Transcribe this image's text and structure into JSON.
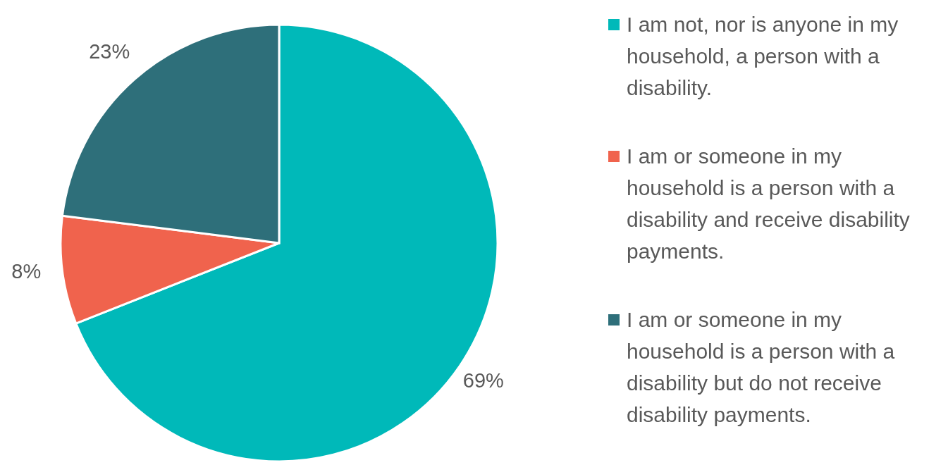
{
  "chart_data": {
    "type": "pie",
    "categories": [
      "I am not, nor is anyone in my household, a person with a disability.",
      "I am or someone in my household is a person with a disability and receive disability payments.",
      "I am or someone in my household is a person with a disability but do not receive disability payments."
    ],
    "values": [
      69,
      8,
      23
    ],
    "value_labels": [
      "69%",
      "8%",
      "23%"
    ],
    "colors": [
      "#00b9b9",
      "#f0634d",
      "#2e6f7a"
    ],
    "legend": "right"
  }
}
